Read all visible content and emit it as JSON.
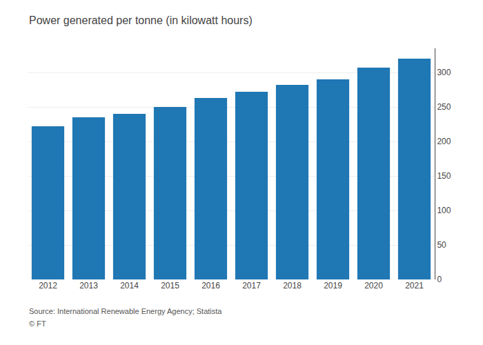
{
  "chart_data": {
    "type": "bar",
    "title": "Power generated per tonne (in kilowatt hours)",
    "categories": [
      "2012",
      "2013",
      "2014",
      "2015",
      "2016",
      "2017",
      "2018",
      "2019",
      "2020",
      "2021"
    ],
    "values": [
      222,
      235,
      240,
      250,
      263,
      272,
      282,
      290,
      307,
      320
    ],
    "ylim": [
      0,
      335
    ],
    "yticks": [
      0,
      50,
      100,
      150,
      200,
      250,
      300
    ],
    "grid": true,
    "annotations": [
      "Source: International Renewable Energy Agency; Statista",
      "© FT"
    ]
  }
}
